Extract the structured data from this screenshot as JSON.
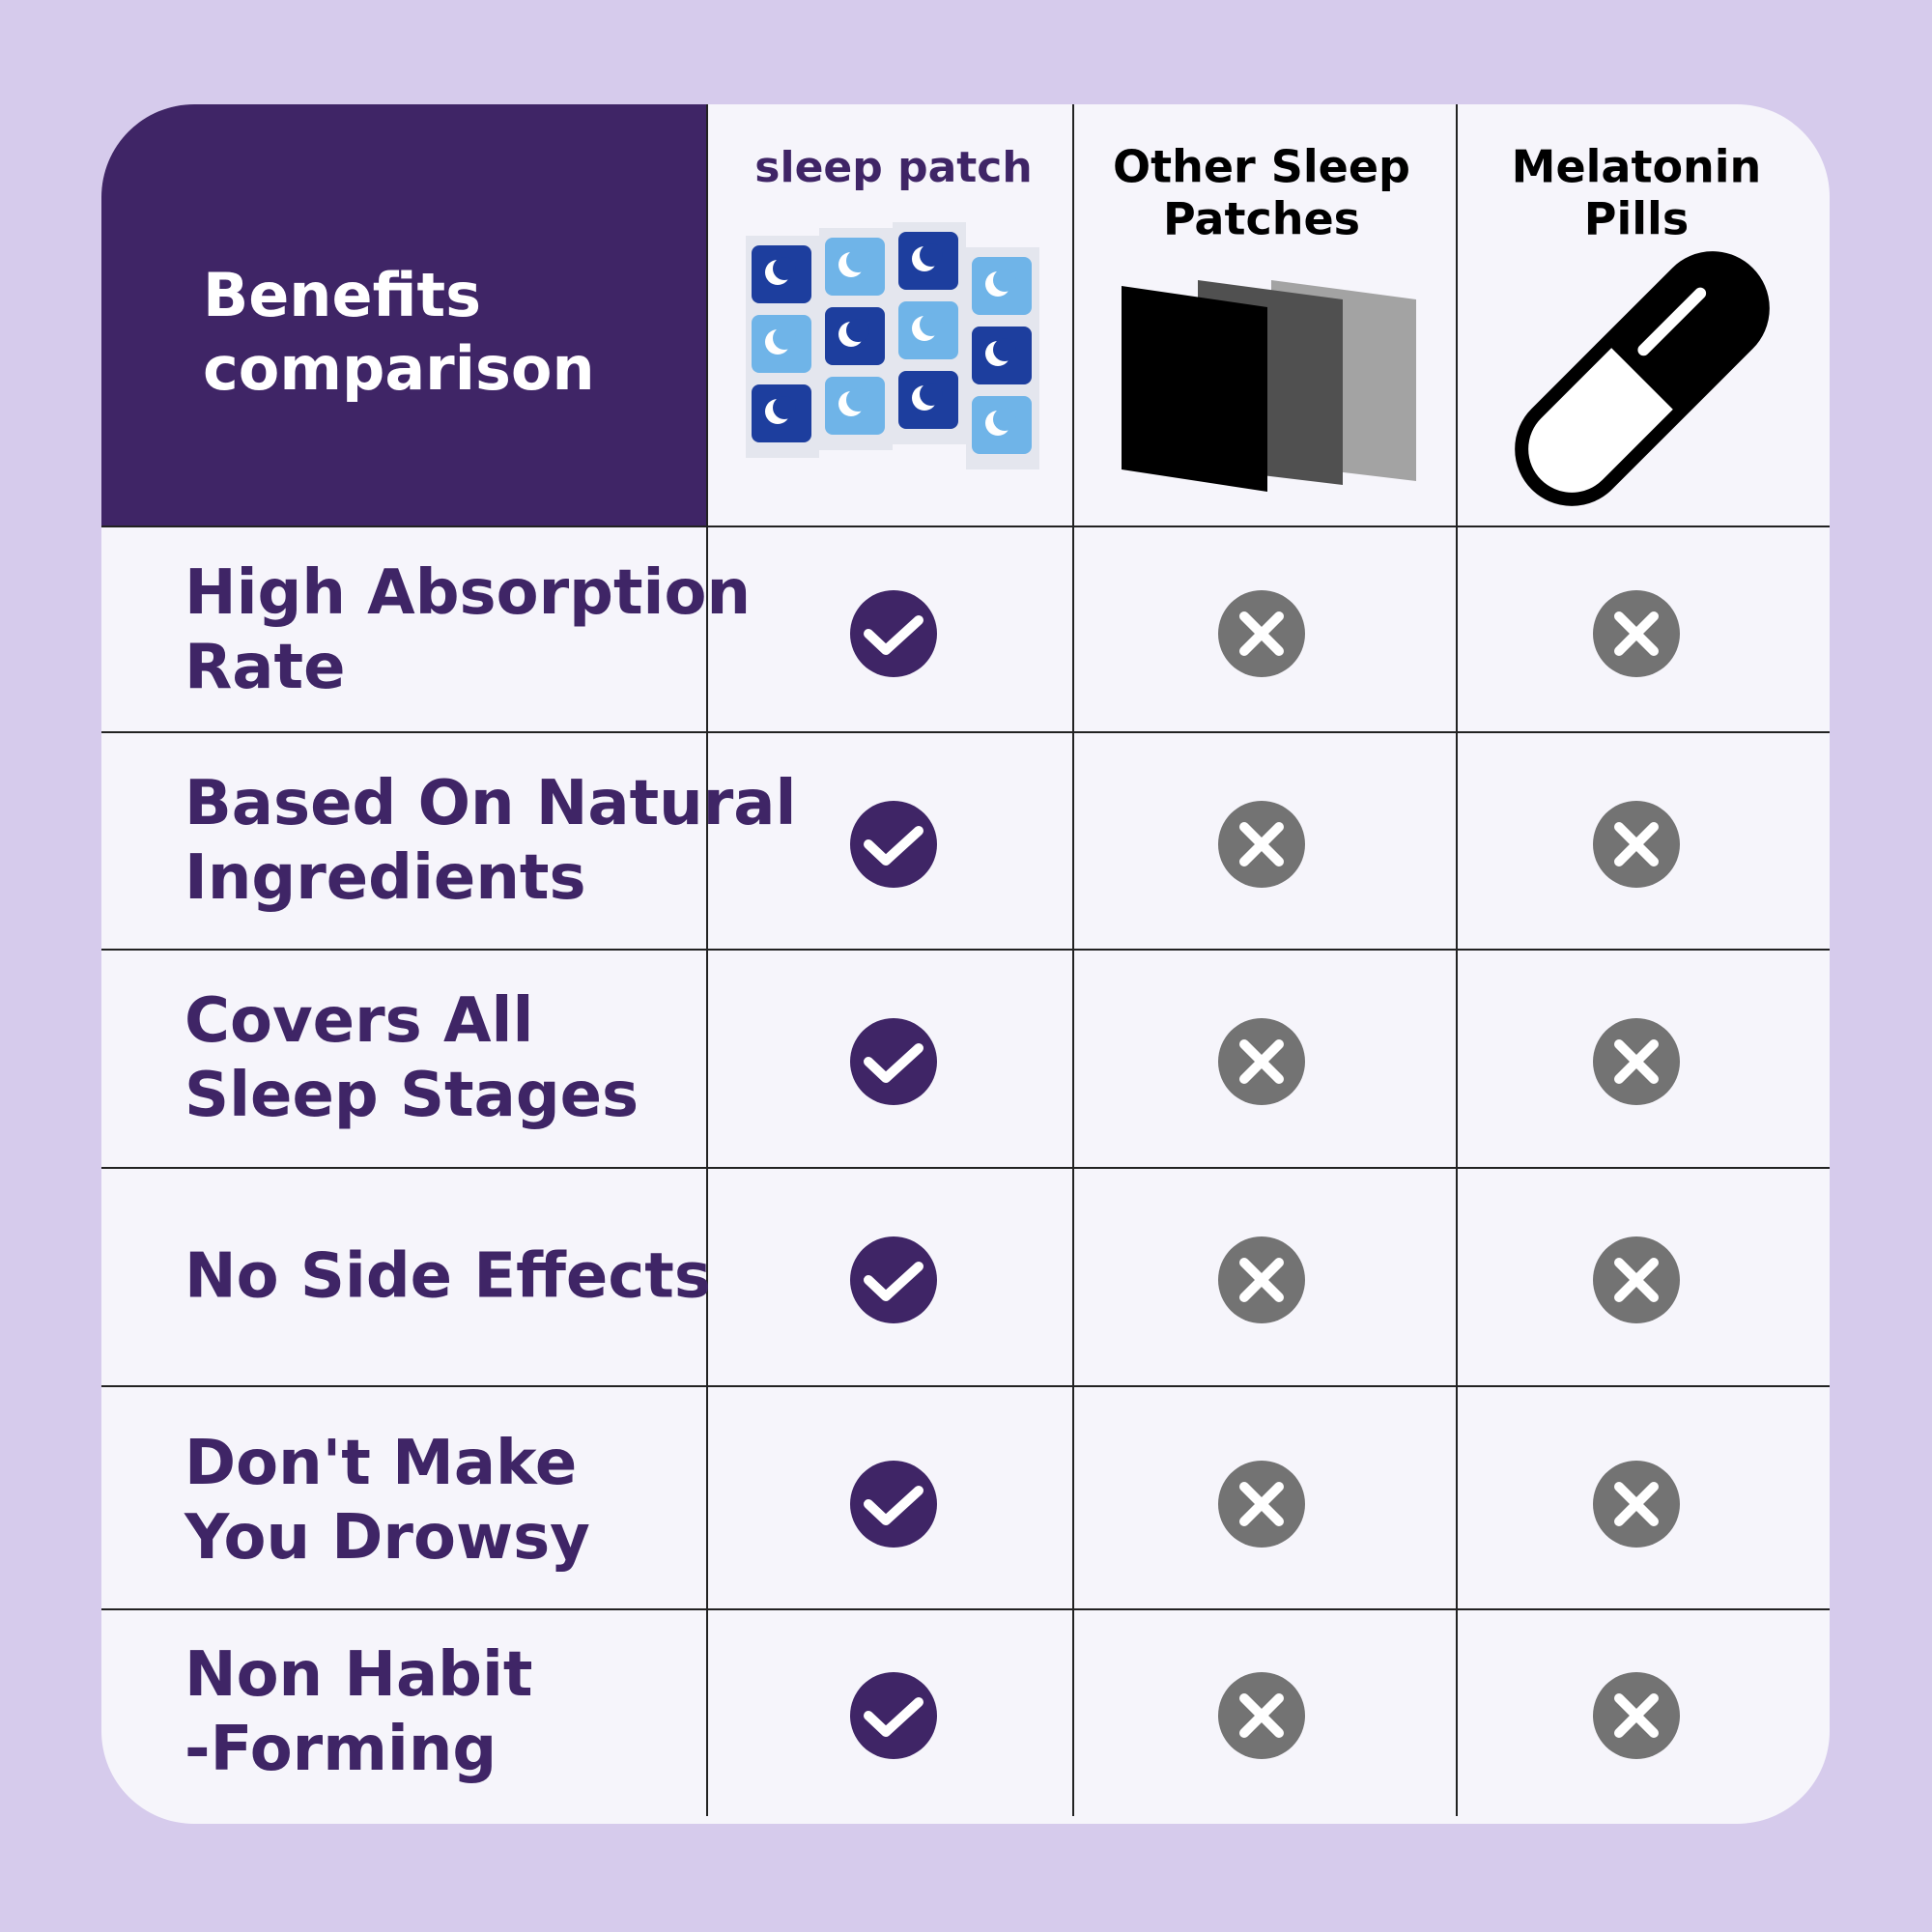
{
  "header": {
    "title": [
      "Benefits",
      "comparison"
    ]
  },
  "columns": [
    [
      "sleep patch"
    ],
    [
      "Other Sleep",
      "Patches"
    ],
    [
      "Melatonin",
      "Pills"
    ]
  ],
  "rows": [
    {
      "label": [
        "High Absorption",
        "Rate"
      ]
    },
    {
      "label": [
        "Based On Natural",
        "Ingredients"
      ]
    },
    {
      "label": [
        "Covers All",
        "Sleep Stages"
      ]
    },
    {
      "label": [
        "No Side Effects"
      ]
    },
    {
      "label": [
        "Don't Make",
        "You Drowsy"
      ]
    },
    {
      "label": [
        "Non Habit",
        "-Forming"
      ]
    }
  ]
}
